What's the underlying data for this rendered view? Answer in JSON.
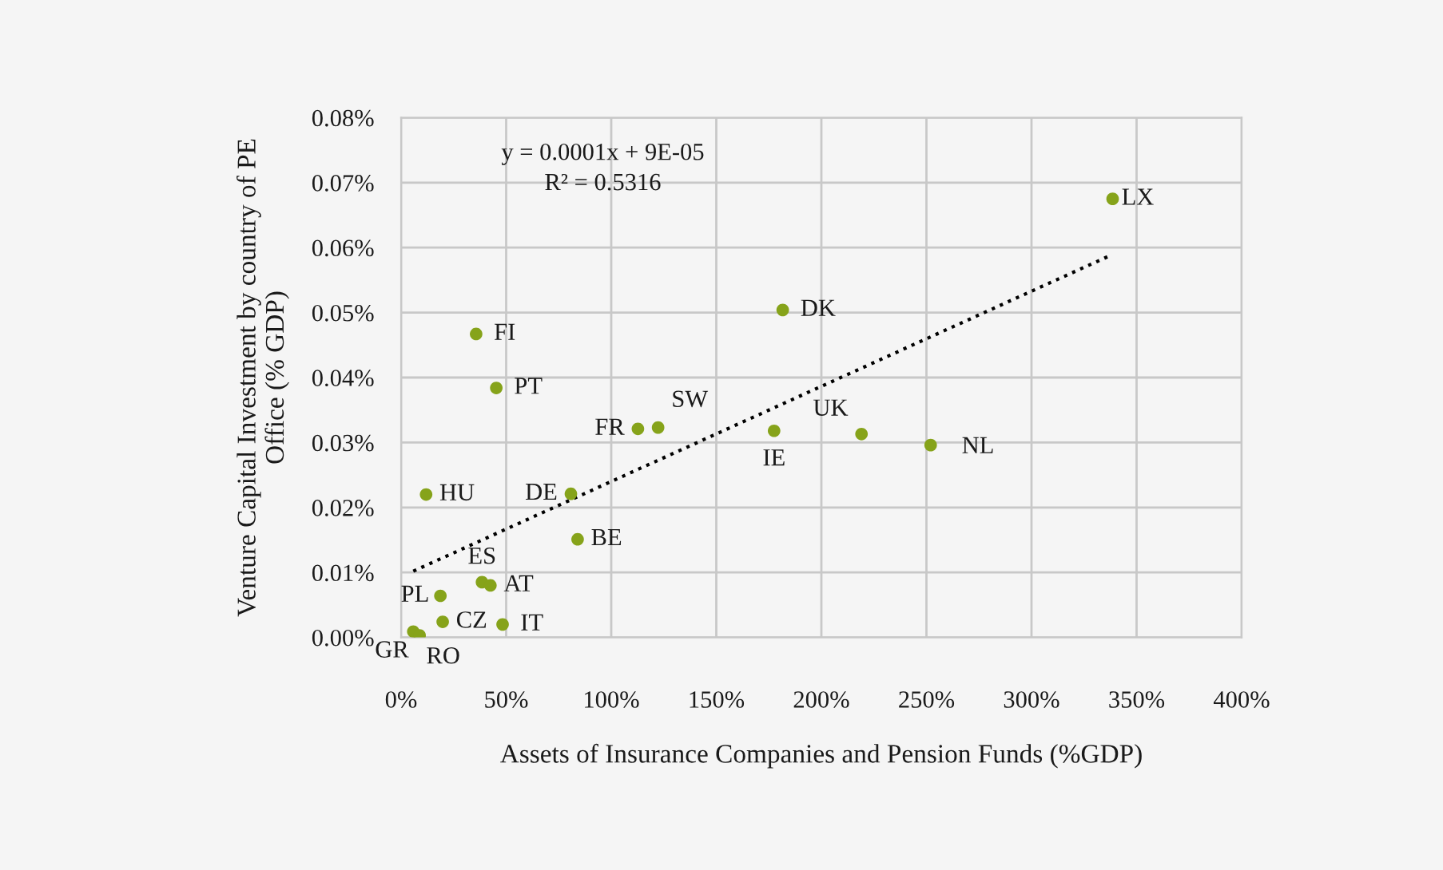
{
  "chart_data": {
    "type": "scatter",
    "xlabel": "Assets of Insurance Companies and Pension Funds (%GDP)",
    "ylabel": "Venture Capital Investment by country of PE Office (% GDP)",
    "xlim": [
      0,
      400
    ],
    "ylim": [
      0,
      0.08
    ],
    "xticks": [
      {
        "value": 0,
        "label": "0%"
      },
      {
        "value": 50,
        "label": "50%"
      },
      {
        "value": 100,
        "label": "100%"
      },
      {
        "value": 150,
        "label": "150%"
      },
      {
        "value": 200,
        "label": "200%"
      },
      {
        "value": 250,
        "label": "250%"
      },
      {
        "value": 300,
        "label": "300%"
      },
      {
        "value": 350,
        "label": "350%"
      },
      {
        "value": 400,
        "label": "400%"
      }
    ],
    "yticks": [
      {
        "value": 0,
        "label": "0.00%"
      },
      {
        "value": 0.01,
        "label": "0.01%"
      },
      {
        "value": 0.02,
        "label": "0.02%"
      },
      {
        "value": 0.03,
        "label": "0.03%"
      },
      {
        "value": 0.04,
        "label": "0.04%"
      },
      {
        "value": 0.05,
        "label": "0.05%"
      },
      {
        "value": 0.06,
        "label": "0.06%"
      },
      {
        "value": 0.07,
        "label": "0.07%"
      },
      {
        "value": 0.08,
        "label": "0.08%"
      }
    ],
    "grid": true,
    "legend": false,
    "annotations": [
      "y = 0.0001x + 9E-05",
      "R² = 0.5316"
    ],
    "series": [
      {
        "color": "#86a31a",
        "marker": "circle",
        "x": [
          35.7,
          45.3,
          112.7,
          122.3,
          181.6,
          177.5,
          219.1,
          252,
          338.6,
          11.9,
          80.8,
          84,
          38.5,
          42.5,
          18.7,
          19.8,
          48.3,
          5.8,
          8.8
        ],
        "values": [
          0.0467,
          0.0384,
          0.0321,
          0.0323,
          0.0504,
          0.0318,
          0.0313,
          0.0296,
          0.0675,
          0.022,
          0.0221,
          0.0151,
          0.0085,
          0.008,
          0.0064,
          0.0024,
          0.002,
          0.0009,
          0.0003
        ],
        "value_labels": [
          "FI",
          "PT",
          "FR",
          "SW",
          "DK",
          "IE",
          "UK",
          "NL",
          "LX",
          "HU",
          "DE",
          "BE",
          "ES",
          "AT",
          "PL",
          "CZ",
          "IT",
          "GR",
          "RO"
        ]
      },
      {
        "type": "line",
        "color": "#000000",
        "line_style": "dotted",
        "marker": "none",
        "x": [
          5.8,
          337.6
        ],
        "values": [
          0.0102,
          0.0588
        ]
      }
    ]
  }
}
